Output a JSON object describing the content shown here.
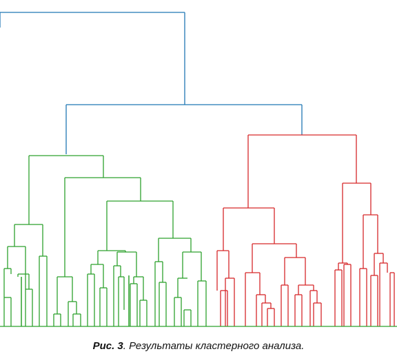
{
  "colors": {
    "root": "#1f77b4",
    "green": "#2ca02c",
    "red": "#d62728"
  },
  "caption": {
    "label": "Рис. 3",
    "text": ". Результаты кластерного анализа."
  }
}
